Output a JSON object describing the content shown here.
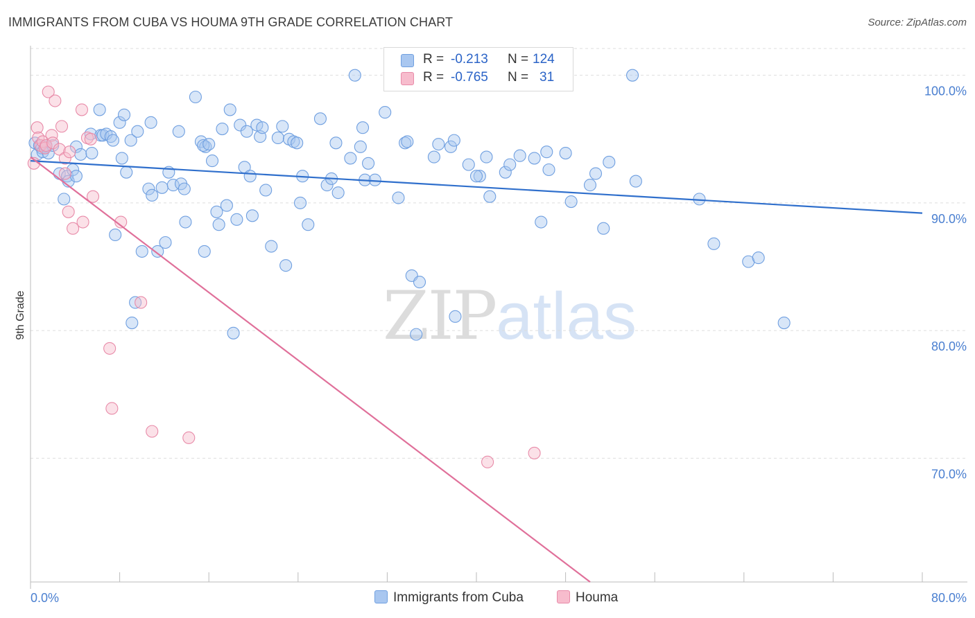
{
  "title": "IMMIGRANTS FROM CUBA VS HOUMA 9TH GRADE CORRELATION CHART",
  "source": "Source: ZipAtlas.com",
  "watermark": {
    "zip": "ZIP",
    "atlas": "atlas"
  },
  "legend_stats": [
    {
      "r_label": "R =",
      "r_value": "-0.213",
      "n_label": "N =",
      "n_value": "124",
      "color": "#a9c7f0",
      "stroke": "#6f9fe0"
    },
    {
      "r_label": "R =",
      "r_value": "-0.765",
      "n_label": "N =",
      "n_value": "31",
      "color": "#f7bccd",
      "stroke": "#e88aa8"
    }
  ],
  "colors": {
    "cuba_fill": "#a9c7f0",
    "cuba_stroke": "#6f9fe0",
    "cuba_line": "#2f6fcc",
    "houma_fill": "#f7bccd",
    "houma_stroke": "#e88aa8",
    "houma_line": "#e0709a",
    "tick_text": "#4a7fd0",
    "grid": "#dddddd"
  },
  "chart_data": {
    "type": "scatter",
    "title": "IMMIGRANTS FROM CUBA VS HOUMA 9TH GRADE CORRELATION CHART",
    "xlabel": "",
    "ylabel": "9th Grade",
    "xlim": [
      0,
      80
    ],
    "ylim": [
      60.3,
      102.1
    ],
    "x_ticks": [
      {
        "value": 0,
        "label": "0.0%"
      },
      {
        "value": 80,
        "label": "80.0%"
      }
    ],
    "y_ticks": [
      {
        "value": 100,
        "label": "100.0%"
      },
      {
        "value": 90,
        "label": "90.0%"
      },
      {
        "value": 80,
        "label": "80.0%"
      },
      {
        "value": 70,
        "label": "70.0%"
      }
    ],
    "x_minor_ticks": [
      0,
      8,
      16,
      24,
      32,
      40,
      48,
      56,
      64,
      72,
      80
    ],
    "grid": true,
    "legend_position": "bottom",
    "series": [
      {
        "name": "Immigrants from Cuba",
        "trend": {
          "x": [
            0,
            80
          ],
          "y": [
            93.3,
            89.2
          ]
        },
        "points": [
          [
            0.4,
            94.7
          ],
          [
            0.6,
            93.8
          ],
          [
            0.8,
            94.5
          ],
          [
            1.0,
            94.3
          ],
          [
            1.1,
            94.0
          ],
          [
            1.4,
            94.4
          ],
          [
            1.6,
            93.9
          ],
          [
            2.0,
            94.5
          ],
          [
            2.6,
            92.3
          ],
          [
            3.0,
            90.3
          ],
          [
            3.3,
            92.1
          ],
          [
            3.4,
            91.7
          ],
          [
            3.8,
            92.6
          ],
          [
            4.1,
            92.1
          ],
          [
            4.1,
            94.4
          ],
          [
            4.5,
            93.8
          ],
          [
            5.4,
            95.4
          ],
          [
            5.5,
            93.9
          ],
          [
            6.2,
            97.3
          ],
          [
            6.3,
            95.3
          ],
          [
            6.5,
            95.3
          ],
          [
            6.8,
            95.4
          ],
          [
            7.2,
            95.2
          ],
          [
            7.4,
            94.9
          ],
          [
            7.6,
            87.5
          ],
          [
            8.0,
            96.3
          ],
          [
            8.2,
            93.5
          ],
          [
            8.4,
            96.9
          ],
          [
            8.6,
            92.4
          ],
          [
            9.0,
            94.9
          ],
          [
            9.4,
            82.2
          ],
          [
            9.1,
            80.6
          ],
          [
            9.6,
            95.6
          ],
          [
            10.0,
            86.2
          ],
          [
            10.6,
            91.1
          ],
          [
            10.8,
            96.3
          ],
          [
            10.9,
            90.6
          ],
          [
            11.4,
            86.2
          ],
          [
            11.8,
            91.2
          ],
          [
            12.1,
            86.9
          ],
          [
            12.4,
            92.4
          ],
          [
            12.8,
            91.4
          ],
          [
            13.3,
            95.6
          ],
          [
            13.5,
            91.5
          ],
          [
            13.8,
            91.1
          ],
          [
            13.9,
            88.5
          ],
          [
            14.8,
            98.3
          ],
          [
            15.3,
            94.8
          ],
          [
            15.6,
            86.2
          ],
          [
            15.7,
            94.4
          ],
          [
            15.5,
            94.5
          ],
          [
            16.0,
            94.6
          ],
          [
            16.3,
            93.3
          ],
          [
            16.7,
            89.3
          ],
          [
            16.9,
            88.3
          ],
          [
            17.2,
            95.8
          ],
          [
            17.6,
            89.8
          ],
          [
            17.9,
            97.3
          ],
          [
            18.2,
            79.8
          ],
          [
            18.5,
            88.7
          ],
          [
            18.8,
            96.1
          ],
          [
            19.2,
            92.8
          ],
          [
            19.4,
            95.6
          ],
          [
            19.7,
            92.1
          ],
          [
            19.9,
            89.0
          ],
          [
            20.3,
            96.1
          ],
          [
            20.6,
            95.2
          ],
          [
            20.8,
            95.9
          ],
          [
            21.1,
            91.0
          ],
          [
            21.6,
            86.6
          ],
          [
            22.2,
            95.1
          ],
          [
            22.6,
            96.0
          ],
          [
            22.9,
            85.1
          ],
          [
            23.2,
            95.0
          ],
          [
            23.6,
            94.8
          ],
          [
            23.9,
            94.7
          ],
          [
            24.2,
            90.0
          ],
          [
            24.4,
            92.1
          ],
          [
            24.9,
            88.3
          ],
          [
            26.0,
            96.6
          ],
          [
            26.6,
            91.4
          ],
          [
            27.0,
            91.9
          ],
          [
            27.4,
            94.7
          ],
          [
            27.6,
            90.8
          ],
          [
            28.7,
            93.5
          ],
          [
            29.1,
            100.0
          ],
          [
            29.6,
            94.4
          ],
          [
            29.8,
            95.9
          ],
          [
            30.0,
            91.8
          ],
          [
            30.3,
            93.1
          ],
          [
            30.9,
            91.8
          ],
          [
            31.8,
            97.1
          ],
          [
            33.0,
            90.4
          ],
          [
            33.6,
            94.7
          ],
          [
            33.8,
            94.8
          ],
          [
            34.2,
            84.3
          ],
          [
            34.6,
            79.7
          ],
          [
            34.9,
            83.8
          ],
          [
            36.2,
            93.6
          ],
          [
            36.6,
            94.6
          ],
          [
            37.7,
            94.4
          ],
          [
            38.0,
            94.9
          ],
          [
            38.1,
            81.1
          ],
          [
            39.3,
            93.0
          ],
          [
            40.3,
            92.1
          ],
          [
            40.9,
            93.6
          ],
          [
            41.2,
            90.5
          ],
          [
            42.6,
            92.4
          ],
          [
            43.9,
            93.7
          ],
          [
            45.2,
            93.5
          ],
          [
            45.8,
            88.5
          ],
          [
            46.3,
            94.0
          ],
          [
            46.5,
            92.6
          ],
          [
            48.0,
            93.9
          ],
          [
            48.5,
            90.1
          ],
          [
            50.2,
            91.4
          ],
          [
            50.7,
            92.3
          ],
          [
            51.4,
            88.0
          ],
          [
            51.9,
            93.2
          ],
          [
            54.0,
            100.0
          ],
          [
            54.3,
            91.7
          ],
          [
            61.3,
            86.8
          ],
          [
            64.4,
            85.4
          ],
          [
            65.3,
            85.7
          ],
          [
            67.6,
            80.6
          ],
          [
            40.0,
            92.1
          ],
          [
            43.0,
            93.0
          ],
          [
            60.0,
            90.3
          ]
        ]
      },
      {
        "name": "Houma",
        "trend": {
          "x": [
            0,
            50.2
          ],
          "y": [
            93.6,
            60.3
          ]
        },
        "points": [
          [
            0.3,
            93.1
          ],
          [
            0.6,
            95.9
          ],
          [
            0.7,
            95.1
          ],
          [
            0.9,
            94.5
          ],
          [
            1.1,
            94.8
          ],
          [
            1.3,
            94.3
          ],
          [
            1.4,
            94.5
          ],
          [
            1.6,
            98.7
          ],
          [
            1.9,
            95.3
          ],
          [
            2.0,
            94.7
          ],
          [
            2.2,
            98.0
          ],
          [
            2.6,
            94.2
          ],
          [
            2.8,
            96.0
          ],
          [
            3.1,
            92.3
          ],
          [
            3.1,
            93.5
          ],
          [
            3.4,
            89.3
          ],
          [
            3.5,
            94.0
          ],
          [
            3.8,
            88.0
          ],
          [
            4.6,
            97.3
          ],
          [
            4.7,
            88.5
          ],
          [
            5.1,
            95.1
          ],
          [
            5.4,
            95.0
          ],
          [
            5.6,
            90.5
          ],
          [
            7.1,
            78.6
          ],
          [
            7.3,
            73.9
          ],
          [
            8.1,
            88.5
          ],
          [
            9.9,
            82.2
          ],
          [
            10.9,
            72.1
          ],
          [
            14.2,
            71.6
          ],
          [
            41.0,
            69.7
          ],
          [
            45.2,
            70.4
          ]
        ]
      }
    ]
  }
}
